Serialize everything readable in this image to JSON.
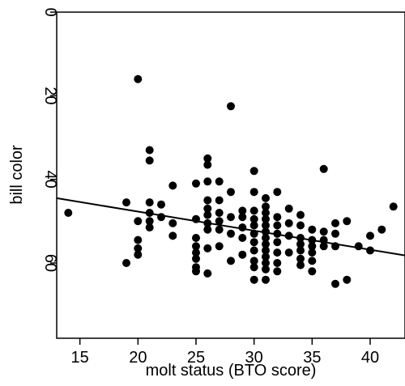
{
  "chart_data": {
    "type": "scatter",
    "title": "",
    "xlabel": "molt status (BTO score)",
    "ylabel": "bill color",
    "xlim": [
      13,
      43
    ],
    "ylim": [
      0,
      78
    ],
    "y_inverted": true,
    "x_ticks": [
      15,
      20,
      25,
      30,
      35,
      40
    ],
    "y_ticks": [
      0,
      20,
      40,
      60
    ],
    "grid": false,
    "legend": "none",
    "point_color": "#000000",
    "regression_line": {
      "x": [
        13,
        43
      ],
      "y": [
        44.5,
        58.2
      ]
    },
    "points": [
      [
        14,
        48
      ],
      [
        19,
        45.5
      ],
      [
        19,
        60
      ],
      [
        20,
        16
      ],
      [
        20,
        50
      ],
      [
        20,
        54.5
      ],
      [
        20,
        56.5
      ],
      [
        20,
        58
      ],
      [
        21,
        33
      ],
      [
        21,
        35.5
      ],
      [
        21,
        45.5
      ],
      [
        21,
        48
      ],
      [
        21,
        50
      ],
      [
        21,
        51.5
      ],
      [
        22,
        46
      ],
      [
        22,
        49
      ],
      [
        23,
        41.5
      ],
      [
        23,
        50.5
      ],
      [
        23,
        53.5
      ],
      [
        25,
        41
      ],
      [
        25,
        49.5
      ],
      [
        25,
        54
      ],
      [
        25,
        56
      ],
      [
        25,
        57.5
      ],
      [
        25,
        59
      ],
      [
        25,
        61
      ],
      [
        25,
        62
      ],
      [
        26,
        35
      ],
      [
        26,
        36.5
      ],
      [
        26,
        40.5
      ],
      [
        26,
        45
      ],
      [
        26,
        47
      ],
      [
        26,
        48.5
      ],
      [
        26,
        50.5
      ],
      [
        26,
        52
      ],
      [
        26,
        56.5
      ],
      [
        26,
        62.5
      ],
      [
        27,
        40.5
      ],
      [
        27,
        45
      ],
      [
        27,
        48
      ],
      [
        27,
        50
      ],
      [
        27,
        52
      ],
      [
        27,
        56
      ],
      [
        28,
        22.5
      ],
      [
        28,
        43
      ],
      [
        28,
        49
      ],
      [
        28,
        53
      ],
      [
        28,
        59.5
      ],
      [
        29,
        47.5
      ],
      [
        29,
        49
      ],
      [
        29,
        51.5
      ],
      [
        29,
        54
      ],
      [
        29,
        58
      ],
      [
        30,
        38
      ],
      [
        30,
        43
      ],
      [
        30,
        47.5
      ],
      [
        30,
        49.5
      ],
      [
        30,
        51
      ],
      [
        30,
        53
      ],
      [
        30,
        55
      ],
      [
        30,
        57
      ],
      [
        30,
        59.5
      ],
      [
        30,
        61
      ],
      [
        30,
        64
      ],
      [
        31,
        44.5
      ],
      [
        31,
        46.5
      ],
      [
        31,
        48
      ],
      [
        31,
        49.5
      ],
      [
        31,
        51
      ],
      [
        31,
        52.5
      ],
      [
        31,
        54
      ],
      [
        31,
        55.5
      ],
      [
        31,
        57
      ],
      [
        31,
        58.5
      ],
      [
        31,
        60
      ],
      [
        31,
        61.5
      ],
      [
        31,
        64
      ],
      [
        32,
        43
      ],
      [
        32,
        49
      ],
      [
        32,
        51
      ],
      [
        32,
        53
      ],
      [
        32,
        55
      ],
      [
        32,
        57.5
      ],
      [
        32,
        60
      ],
      [
        32,
        62
      ],
      [
        33,
        47
      ],
      [
        33,
        50.5
      ],
      [
        33,
        53.5
      ],
      [
        33,
        57.5
      ],
      [
        34,
        48.5
      ],
      [
        34,
        51
      ],
      [
        34,
        54
      ],
      [
        34,
        55.5
      ],
      [
        34,
        57
      ],
      [
        34,
        59
      ],
      [
        34,
        60.5
      ],
      [
        35,
        52
      ],
      [
        35,
        54.5
      ],
      [
        35,
        56
      ],
      [
        35,
        57.5
      ],
      [
        35,
        59.5
      ],
      [
        35,
        62
      ],
      [
        36,
        37.5
      ],
      [
        36,
        52.5
      ],
      [
        36,
        54.5
      ],
      [
        36,
        56
      ],
      [
        37,
        50.5
      ],
      [
        37,
        53
      ],
      [
        37,
        56
      ],
      [
        37,
        65
      ],
      [
        38,
        50
      ],
      [
        38,
        64
      ],
      [
        39,
        56
      ],
      [
        40,
        53.5
      ],
      [
        40,
        57
      ],
      [
        41,
        52
      ],
      [
        42,
        46.5
      ]
    ]
  }
}
